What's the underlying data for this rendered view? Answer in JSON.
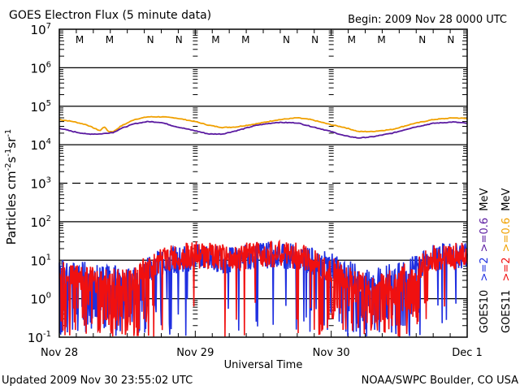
{
  "chart_data": {
    "type": "line",
    "title": "GOES Electron Flux (5 minute data)",
    "begin_label": "Begin: 2009 Nov 28 0000 UTC",
    "xlabel": "Universal Time",
    "ylabel": "Particles cm",
    "ylabel_parts": {
      "base": "Particles cm",
      "e1": "-2",
      "s": "s",
      "e2": "-1",
      "sr": "sr",
      "e3": "-1"
    },
    "yscale": "log",
    "ylim_exponents": [
      -1,
      7
    ],
    "y_ticks": [
      {
        "base": "10",
        "exp": "7"
      },
      {
        "base": "10",
        "exp": "6"
      },
      {
        "base": "10",
        "exp": "5"
      },
      {
        "base": "10",
        "exp": "4"
      },
      {
        "base": "10",
        "exp": "3"
      },
      {
        "base": "10",
        "exp": "2"
      },
      {
        "base": "10",
        "exp": "1"
      },
      {
        "base": "10",
        "exp": "0"
      },
      {
        "base": "10",
        "exp": "-1"
      }
    ],
    "x_ticks": [
      "Nov 28",
      "Nov 29",
      "Nov 30",
      "Dec 1"
    ],
    "xlim_days": [
      0,
      3
    ],
    "grid": {
      "solid_exponents": [
        6,
        5,
        4,
        2,
        1,
        0
      ],
      "dashed_exponents": [
        3
      ]
    },
    "markers": [
      {
        "label": "M",
        "day": 0.15,
        "color": "#1f2fe0"
      },
      {
        "label": "M",
        "day": 0.37,
        "color": "#e01010"
      },
      {
        "label": "N",
        "day": 0.67,
        "color": "#1f2fe0"
      },
      {
        "label": "N",
        "day": 0.88,
        "color": "#e01010"
      },
      {
        "label": "M",
        "day": 1.15,
        "color": "#1f2fe0"
      },
      {
        "label": "M",
        "day": 1.37,
        "color": "#e01010"
      },
      {
        "label": "N",
        "day": 1.67,
        "color": "#1f2fe0"
      },
      {
        "label": "N",
        "day": 1.88,
        "color": "#e01010"
      },
      {
        "label": "M",
        "day": 2.15,
        "color": "#1f2fe0"
      },
      {
        "label": "M",
        "day": 2.37,
        "color": "#e01010"
      },
      {
        "label": "N",
        "day": 2.67,
        "color": "#1f2fe0"
      },
      {
        "label": "N",
        "day": 2.88,
        "color": "#e01010"
      }
    ],
    "series": [
      {
        "name": "GOES11 >=0.6 MeV",
        "color": "#f0a000",
        "x": [
          0,
          0.1,
          0.2,
          0.3,
          0.33,
          0.36,
          0.4,
          0.45,
          0.55,
          0.65,
          0.75,
          0.85,
          1.0,
          1.1,
          1.2,
          1.3,
          1.45,
          1.6,
          1.75,
          1.85,
          2.0,
          2.1,
          2.2,
          2.3,
          2.45,
          2.6,
          2.75,
          2.9,
          3.0
        ],
        "values": [
          45000,
          40000,
          33000,
          23000,
          30000,
          22000,
          22000,
          30000,
          45000,
          53000,
          53000,
          50000,
          40000,
          32000,
          28000,
          29000,
          35000,
          44000,
          50000,
          45000,
          33000,
          28000,
          22000,
          22000,
          25000,
          35000,
          45000,
          50000,
          48000
        ]
      },
      {
        "name": "GOES10 >=0.6 MeV",
        "color": "#5a1aa0",
        "x": [
          0,
          0.1,
          0.2,
          0.3,
          0.4,
          0.45,
          0.55,
          0.65,
          0.75,
          0.85,
          1.0,
          1.1,
          1.2,
          1.3,
          1.45,
          1.6,
          1.75,
          1.85,
          2.0,
          2.1,
          2.2,
          2.3,
          2.45,
          2.6,
          2.75,
          2.9,
          3.0
        ],
        "values": [
          27000,
          22000,
          19000,
          19000,
          21000,
          26000,
          35000,
          40000,
          38000,
          30000,
          23000,
          19000,
          19000,
          23000,
          32000,
          38000,
          37000,
          30000,
          22000,
          17000,
          15000,
          16000,
          20000,
          28000,
          36000,
          39000,
          36000
        ]
      },
      {
        "name": "GOES10 >=2 MeV",
        "color": "#1f2fe0",
        "x": [
          0,
          0.25,
          0.5,
          0.75,
          1.0,
          1.25,
          1.5,
          1.75,
          2.0,
          2.25,
          2.5,
          2.75,
          3.0
        ],
        "values": [
          6,
          4,
          3,
          9,
          12,
          10,
          14,
          12,
          7,
          3,
          4,
          12,
          14
        ]
      },
      {
        "name": "GOES11 >=2 MeV",
        "color": "#f01010",
        "x": [
          0,
          0.25,
          0.5,
          0.75,
          1.0,
          1.25,
          1.5,
          1.75,
          2.0,
          2.25,
          2.5,
          2.75,
          3.0
        ],
        "values": [
          5,
          3,
          3,
          10,
          14,
          11,
          15,
          13,
          6,
          2,
          3,
          11,
          14
        ]
      }
    ],
    "legend": {
      "placement": "right",
      "rows": [
        {
          "sat": "GOES10",
          "lo": ">=2",
          "lo_color": "#1f2fe0",
          "hi": ">=0.6",
          "hi_color": "#5a1aa0",
          "unit": "MeV"
        },
        {
          "sat": "GOES11",
          "lo": ">=2",
          "lo_color": "#f01010",
          "hi": ">=0.6",
          "hi_color": "#f0a000",
          "unit": "MeV"
        }
      ]
    }
  },
  "footer": {
    "updated": "Updated 2009 Nov 30 23:55:02 UTC",
    "credit": "NOAA/SWPC Boulder, CO USA"
  }
}
